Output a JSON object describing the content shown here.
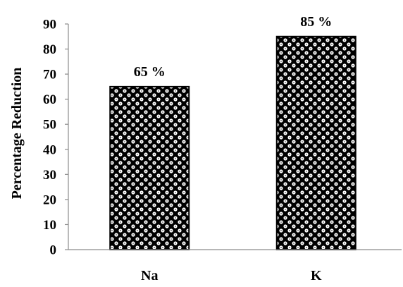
{
  "chart_data": {
    "type": "bar",
    "categories": [
      "Na",
      "K"
    ],
    "values": [
      65,
      85
    ],
    "data_labels": [
      "65 %",
      "85 %"
    ],
    "title": "",
    "xlabel": "",
    "ylabel": "Percentage Reduction",
    "ylim": [
      0,
      90
    ],
    "yticks": [
      0,
      10,
      20,
      30,
      40,
      50,
      60,
      70,
      80,
      90
    ],
    "grid": false,
    "legend": "none",
    "bar_fill": "checker dot pattern",
    "colors": {
      "pattern_dark": "#000000",
      "pattern_light": "#ffffff",
      "axis": "#8c8c8c",
      "text": "#000000"
    }
  }
}
